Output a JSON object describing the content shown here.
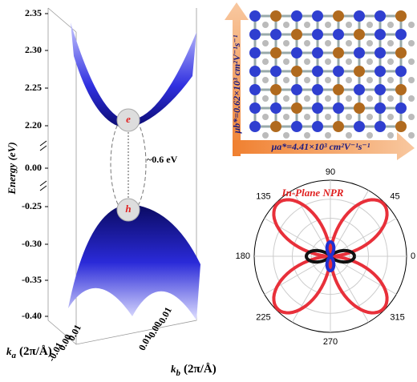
{
  "band": {
    "axis_label": "Energy (eV)",
    "yticks": [
      "2.35",
      "2.30",
      "2.25",
      "2.20",
      "0.00",
      "-0.25",
      "-0.30",
      "-0.35",
      "-0.40"
    ],
    "electron": "e",
    "hole": "h",
    "gap": "~0.6 eV",
    "ka_symbol": "k",
    "ka_sub": "a",
    "ka_unit": "(2π/Å)",
    "kb_symbol": "k",
    "kb_sub": "b",
    "kb_unit": "(2π/Å)",
    "ka_ticks": [
      "-0.01",
      "0.00",
      "0.01"
    ],
    "kb_ticks": [
      "0.01",
      "0.00",
      "-0.01"
    ]
  },
  "lattice": {
    "mu_b": "μb*=0.62×10³ cm²V⁻¹s⁻¹",
    "mu_a": "μa*=4.41×10³ cm²V⁻¹s⁻¹"
  },
  "polar": {
    "title": "In-Plane NPR",
    "angles": [
      "90",
      "45",
      "0",
      "315",
      "270",
      "225",
      "180",
      "135"
    ]
  }
}
